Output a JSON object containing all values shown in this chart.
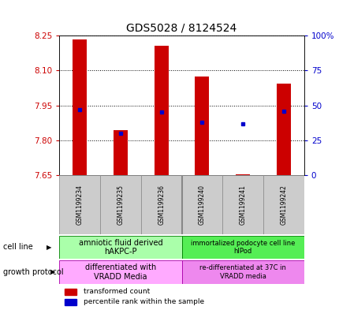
{
  "title": "GDS5028 / 8124524",
  "samples": [
    "GSM1199234",
    "GSM1199235",
    "GSM1199236",
    "GSM1199240",
    "GSM1199241",
    "GSM1199242"
  ],
  "transformed_counts": [
    8.235,
    7.845,
    8.205,
    8.075,
    7.655,
    8.045
  ],
  "percentile_ranks": [
    47,
    30,
    45,
    38,
    37,
    46
  ],
  "ylim_left": [
    7.65,
    8.25
  ],
  "ylim_right": [
    0,
    100
  ],
  "yticks_left": [
    7.65,
    7.8,
    7.95,
    8.1,
    8.25
  ],
  "yticks_right": [
    0,
    25,
    50,
    75,
    100
  ],
  "ytick_labels_right": [
    "0",
    "25",
    "50",
    "75",
    "100%"
  ],
  "bar_color": "#cc0000",
  "dot_color": "#0000cc",
  "bar_bottom": 7.65,
  "cell_line_label1": "amniotic fluid derived\nhAKPC-P",
  "cell_line_label2": "immortalized podocyte cell line\nhIPod",
  "cell_line_color1": "#aaffaa",
  "cell_line_color2": "#55ee55",
  "growth_protocol_label1": "differentiated with\nVRADD Media",
  "growth_protocol_label2": "re-differentiated at 37C in\nVRADD media",
  "growth_protocol_color1": "#ffaaff",
  "growth_protocol_color2": "#ee88ee",
  "legend_red_label": "transformed count",
  "legend_blue_label": "percentile rank within the sample",
  "bar_width": 0.35,
  "sample_box_color": "#cccccc",
  "separator_color": "#888888"
}
